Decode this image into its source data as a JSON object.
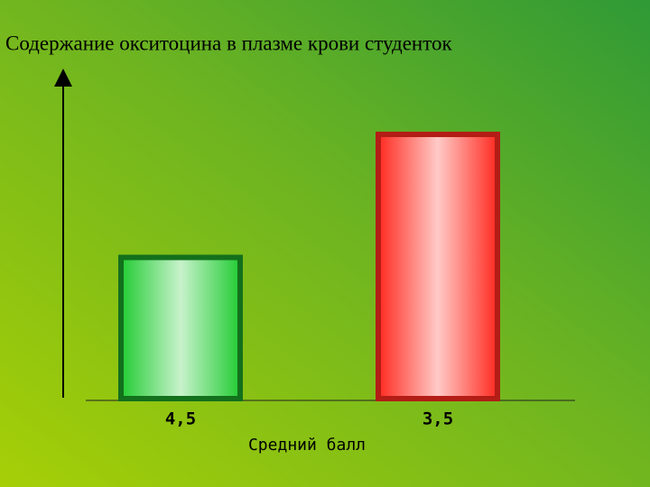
{
  "chart_data": {
    "type": "bar",
    "title": "Содержание окситоцина в плазме крови студенток",
    "x_label": "Средний балл",
    "categories": [
      "4,5",
      "3,5"
    ],
    "values": [
      45,
      83
    ],
    "colors": [
      "#22cc33",
      "#ff2a20"
    ],
    "ylim": [
      0,
      100
    ],
    "grid": false
  }
}
